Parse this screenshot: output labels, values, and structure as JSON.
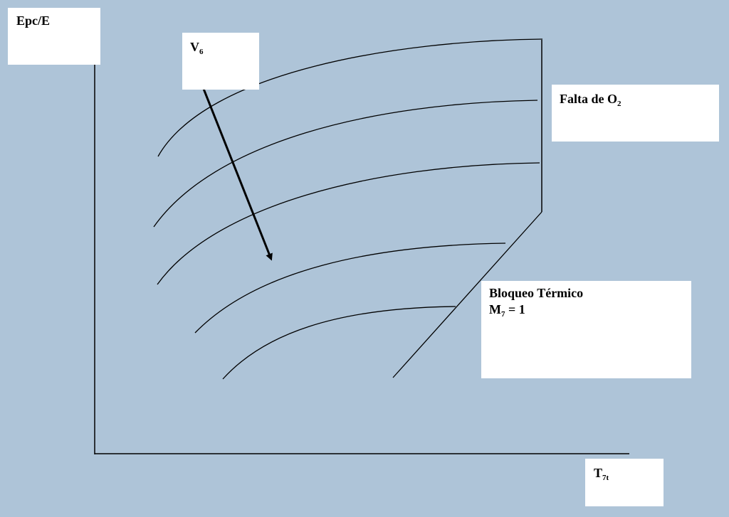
{
  "axes": {
    "y_label": "Epc/E",
    "x_label_main": "T",
    "x_label_sub": "7t"
  },
  "labels": {
    "speed_main": "V",
    "speed_sub": "6",
    "oxygen_main": "Falta de O",
    "oxygen_sub": "2",
    "thermal_line1": "Bloqueo Térmico",
    "thermal_line2_main": "M",
    "thermal_line2_sub": "7",
    "thermal_line2_rest": " = 1"
  },
  "colors": {
    "background": "#aec4d8",
    "box": "#ffffff",
    "ink": "#000000"
  }
}
